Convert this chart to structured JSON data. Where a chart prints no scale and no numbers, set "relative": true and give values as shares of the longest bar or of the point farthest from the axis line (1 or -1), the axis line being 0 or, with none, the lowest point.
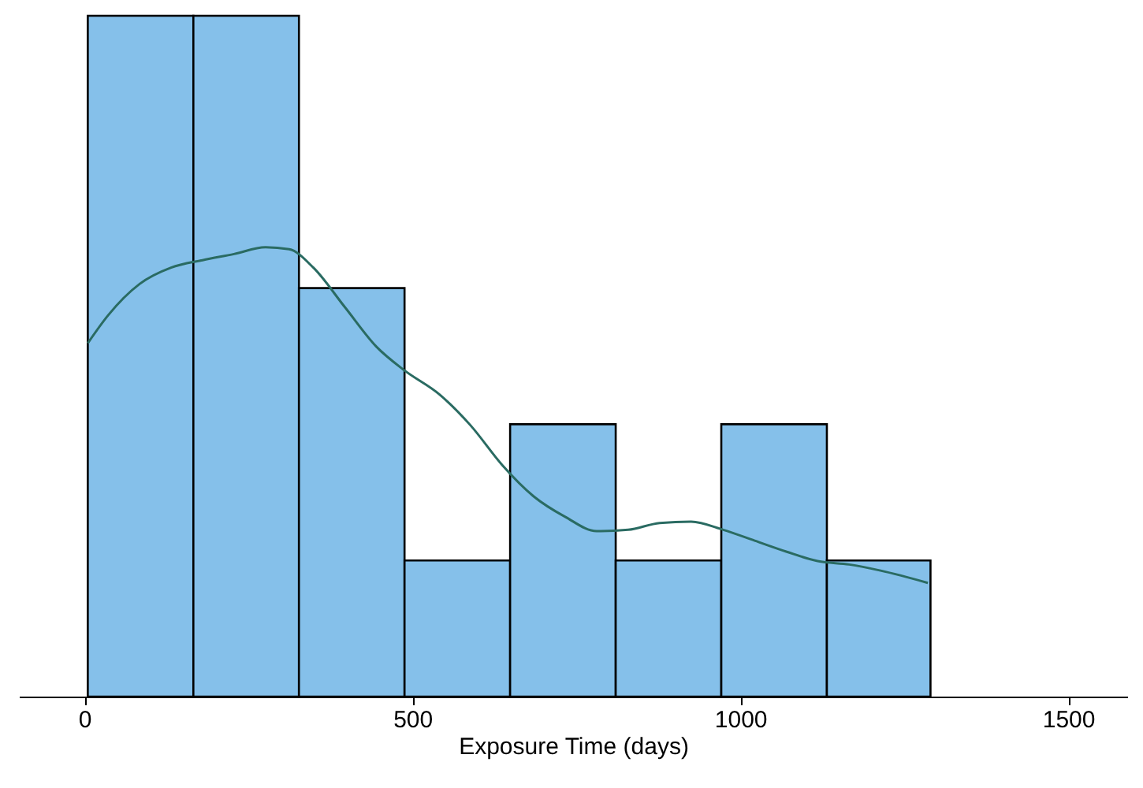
{
  "chart_data": {
    "type": "histogram",
    "xlabel": "Exposure Time (days)",
    "relative": true,
    "color": "#85c0ea",
    "bins": [
      5,
      166,
      327,
      488,
      649,
      810,
      971,
      1132,
      1290
    ],
    "values": [
      1,
      1,
      0.6,
      0.2,
      0.4,
      0.2,
      0.4,
      0.2
    ],
    "xlim": [
      -100,
      1590
    ],
    "xticks": [
      0,
      500,
      1000,
      1500
    ],
    "series": [
      {
        "type": "line",
        "color": "#2a6b62",
        "x": [
          5,
          36,
          84,
          132,
          180,
          228,
          276,
          312,
          349,
          397,
          445,
          488,
          541,
          589,
          637,
          685,
          733,
          781,
          829,
          877,
          925,
          974,
          1022,
          1070,
          1118,
          1166,
          1214,
          1286
        ],
        "values": [
          0.519,
          0.56,
          0.606,
          0.63,
          0.641,
          0.65,
          0.66,
          0.657,
          0.63,
          0.572,
          0.514,
          0.479,
          0.444,
          0.398,
          0.34,
          0.294,
          0.264,
          0.243,
          0.245,
          0.255,
          0.257,
          0.245,
          0.229,
          0.213,
          0.199,
          0.194,
          0.185,
          0.167
        ]
      }
    ]
  }
}
